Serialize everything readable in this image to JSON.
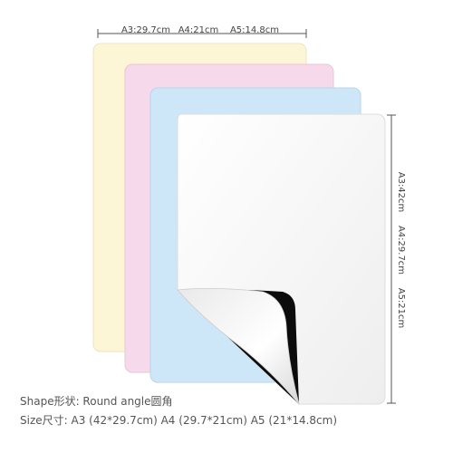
{
  "top_dimensions": [
    "A3:29.7cm",
    "A4:21cm",
    "A5:14.8cm"
  ],
  "side_dimensions": [
    "A3:42cm",
    "A4:29.7cm",
    "A5:21cm"
  ],
  "caption": {
    "shape": "Shape形状: Round angle圆角",
    "size": "Size尺寸: A3 (42*29.7cm)  A4 (29.7*21cm) A5 (21*14.8cm)"
  }
}
